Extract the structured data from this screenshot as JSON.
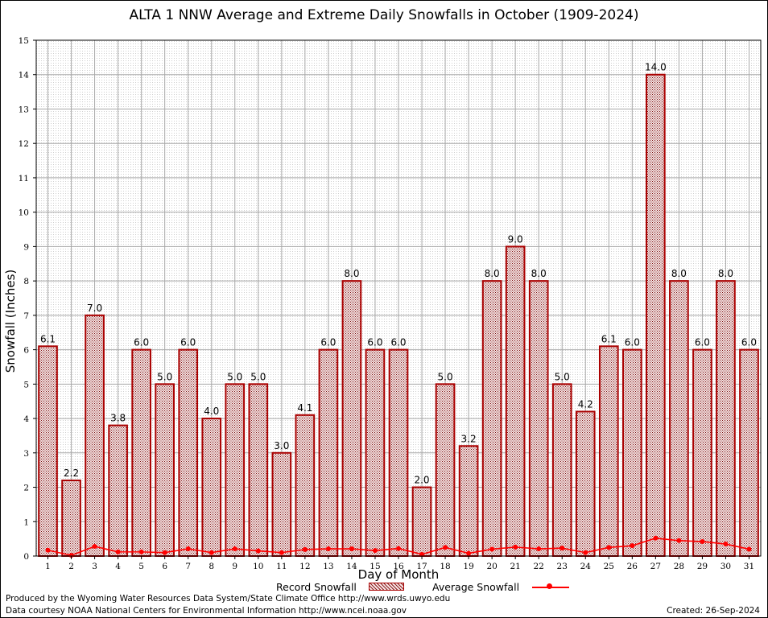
{
  "chart_data": {
    "type": "bar",
    "title": "ALTA 1 NNW Average and Extreme Daily Snowfalls in October (1909-2024)",
    "xlabel": "Day of Month",
    "ylabel": "Snowfall (Inches)",
    "ylim": [
      0,
      15
    ],
    "yticks": [
      "0",
      "1",
      "2",
      "3",
      "4",
      "5",
      "6",
      "7",
      "8",
      "9",
      "10",
      "11",
      "12",
      "13",
      "14",
      "15"
    ],
    "categories": [
      "1",
      "2",
      "3",
      "4",
      "5",
      "6",
      "7",
      "8",
      "9",
      "10",
      "11",
      "12",
      "13",
      "14",
      "15",
      "16",
      "17",
      "18",
      "19",
      "20",
      "21",
      "22",
      "23",
      "24",
      "25",
      "26",
      "27",
      "28",
      "29",
      "30",
      "31"
    ],
    "grid": true,
    "legend_position": "bottom",
    "series": [
      {
        "name": "Record Snowfall",
        "type": "bar",
        "color": "#aa0000",
        "values": [
          6.1,
          2.2,
          7.0,
          3.8,
          6.0,
          5.0,
          6.0,
          4.0,
          5.0,
          5.0,
          3.0,
          4.1,
          6.0,
          8.0,
          6.0,
          6.0,
          2.0,
          5.0,
          3.2,
          8.0,
          9.0,
          8.0,
          5.0,
          4.2,
          6.1,
          6.0,
          14.0,
          8.0,
          6.0,
          8.0,
          6.0
        ],
        "labels": [
          "6.1",
          "2.2",
          "7.0",
          "3.8",
          "6.0",
          "5.0",
          "6.0",
          "4.0",
          "5.0",
          "5.0",
          "3.0",
          "4.1",
          "6.0",
          "8.0",
          "6.0",
          "6.0",
          "2.0",
          "5.0",
          "3.2",
          "8.0",
          "9.0",
          "8.0",
          "5.0",
          "4.2",
          "6.1",
          "6.0",
          "14.0",
          "8.0",
          "6.0",
          "8.0",
          "6.0"
        ]
      },
      {
        "name": "Average Snowfall",
        "type": "line",
        "color": "#ff0000",
        "values": [
          0.17,
          0.02,
          0.28,
          0.12,
          0.12,
          0.1,
          0.21,
          0.1,
          0.21,
          0.15,
          0.1,
          0.19,
          0.21,
          0.21,
          0.16,
          0.22,
          0.05,
          0.25,
          0.08,
          0.2,
          0.26,
          0.21,
          0.23,
          0.1,
          0.25,
          0.3,
          0.52,
          0.45,
          0.42,
          0.35,
          0.2
        ]
      }
    ]
  },
  "footer": {
    "produced_by": "Produced by the Wyoming Water Resources Data System/State Climate Office http://www.wrds.uwyo.edu",
    "courtesy": "Data courtesy NOAA National Centers for Environmental Information http://www.ncei.noaa.gov",
    "created": "Created:  26-Sep-2024"
  }
}
